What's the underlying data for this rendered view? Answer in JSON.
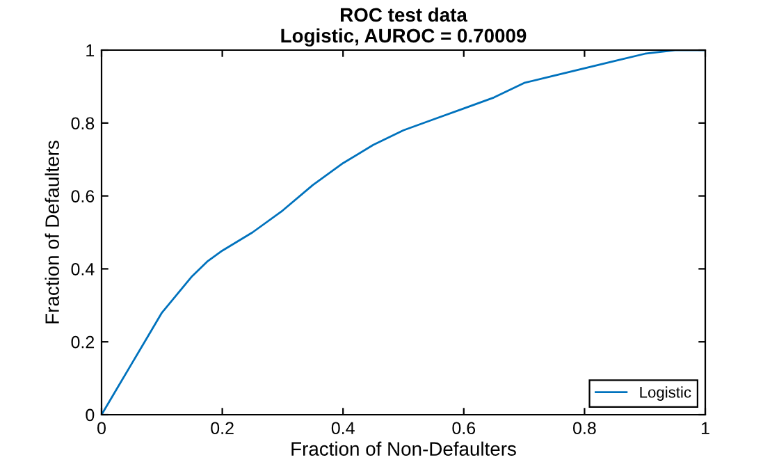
{
  "chart_data": {
    "type": "line",
    "title": "ROC test data\nLogistic, AUROC = 0.70009",
    "xlabel": "Fraction of Non-Defaulters",
    "ylabel": "Fraction of Defaulters",
    "series": [
      {
        "name": "Logistic",
        "color": "#0072bd",
        "x": [
          0,
          0.025,
          0.05,
          0.075,
          0.1,
          0.125,
          0.15,
          0.175,
          0.2,
          0.25,
          0.3,
          0.35,
          0.4,
          0.45,
          0.5,
          0.55,
          0.6,
          0.65,
          0.7,
          0.75,
          0.8,
          0.85,
          0.9,
          0.95,
          1
        ],
        "values": [
          0,
          0.07,
          0.14,
          0.21,
          0.28,
          0.33,
          0.38,
          0.42,
          0.45,
          0.5,
          0.56,
          0.63,
          0.69,
          0.74,
          0.78,
          0.81,
          0.84,
          0.87,
          0.91,
          0.93,
          0.95,
          0.97,
          0.99,
          1.0,
          1.0
        ]
      }
    ],
    "xlim": [
      0,
      1
    ],
    "ylim": [
      0,
      1
    ],
    "xticks": [
      0,
      0.2,
      0.4,
      0.6,
      0.8,
      1
    ],
    "yticks": [
      0,
      0.2,
      0.4,
      0.6,
      0.8,
      1
    ],
    "legend": "bottom right",
    "grid": false
  }
}
